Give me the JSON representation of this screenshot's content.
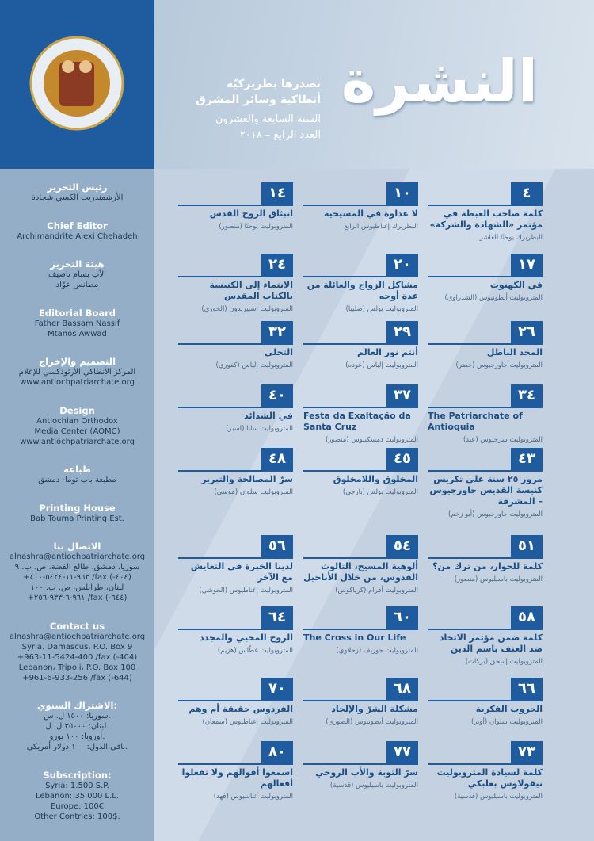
{
  "header": {
    "title": "النشرة",
    "publisher": [
      "تصدرها بطريركيّة",
      "أنطاكية وسائر المشرق"
    ],
    "year": "السنة السابعة والعشرون",
    "issue": "العدد الرابع – ٢٠١٨"
  },
  "sidebar": [
    {
      "heading": "رئيس التحرير",
      "lines": [
        "الأرشمندريت الكسي شحادة"
      ]
    },
    {
      "heading": "Chief Editor",
      "lines": [
        "Archimandrite Alexi Chehadeh"
      ]
    },
    {
      "heading": "هيئة التحرير",
      "lines": [
        "الأب بسام ناصيف",
        "مطانس عوّاد"
      ]
    },
    {
      "heading": "Editorial Board",
      "lines": [
        "Father Bassam Nassif",
        "Mtanos Awwad"
      ]
    },
    {
      "heading": "التصميم والإخراج",
      "lines": [
        "المركز الأنطاكي الأرثوذكسي للإعلام",
        "www.antiochpatriarchate.org"
      ]
    },
    {
      "heading": "Design",
      "lines": [
        "Antiochian Orthodox",
        "Media Center (AOMC)",
        "www.antiochpatriarchate.org"
      ]
    },
    {
      "heading": "طباعة",
      "lines": [
        "مطبعة باب توما- دمشق"
      ]
    },
    {
      "heading": "Printing House",
      "lines": [
        "Bab Touma Printing Est."
      ]
    },
    {
      "heading": "الاتصال بنا",
      "lines": [
        "alnashra@antiochpatriarchate.org",
        "سوريا، دمشق، طالع الفضة، ص. ب. ٩",
        "+٩٦٣-١١-٥٤٢٤-٤٠٠ /fax (-٤٠٤)",
        "لبنان، طرابلس، ص. ب. ١٠٠",
        "+٩٦١-٦-٩٣٣-٢٥٦ /fax (-٦٤٤)"
      ]
    },
    {
      "heading": "Contact us",
      "lines": [
        "alnashra@antiochpatriarchate.org",
        "Syria، Damascus، P.O. Box 9",
        "+963-11-5424-400 /fax (-404)",
        "Lebanon، Tripoli، P.O. Box 100",
        "+961-6-933-256 /fax (-644)"
      ]
    },
    {
      "heading": "الاشتراك السنوي:",
      "lines": [
        "سوريا: ١٥٠٠ ل. س.",
        "لبنان: ٣٥٠٠٠ ل. ل.",
        "أوروبا: ١٠٠ يورو.",
        "باقي الدول: ١٠٠ دولار أمريكي."
      ]
    },
    {
      "heading": "Subscription:",
      "lines": [
        "Syria: 1.500 S.P.",
        "Lebanon: 35.000 L.L.",
        "Europe: 100€",
        "Other Contries: 100$."
      ]
    }
  ],
  "toc": [
    [
      {
        "page": "٤",
        "title": "كلمة صاحب الغبطة في مؤتمر «الشهادة والشركة»",
        "author": "البطريرك يوحنّا العاشر"
      },
      {
        "page": "١٠",
        "title": "لا عداوة في المسيحية",
        "author": "البطريرك إغناطيوس الرابع"
      },
      {
        "page": "١٤",
        "title": "انبثاق الروح القدس",
        "author": "المتروبوليت يوحنّا (منصور)"
      }
    ],
    [
      {
        "page": "١٧",
        "title": "في الكهنوت",
        "author": "المتروبوليت أنطونيوس (الشدراوي)"
      },
      {
        "page": "٢٠",
        "title": "مشاكل الزواج والعائلة من عدة أوجه",
        "author": "المتروبوليت بولس (صليبا)"
      },
      {
        "page": "٢٤",
        "title": "الانتماء إلى الكنيسة بالكتاب المقدس",
        "author": "المتروبوليت اسبيريدون (الخوري)"
      }
    ],
    [
      {
        "page": "٢٦",
        "title": "المجد الباطل",
        "author": "المتروبوليت جاورجيوس (خضر)"
      },
      {
        "page": "٢٩",
        "title": "أنتم نور العالم",
        "author": "المتروبوليت إلياس (عوده)"
      },
      {
        "page": "٣٢",
        "title": "التجلي",
        "author": "المتروبوليت إلياس (كفوري)"
      }
    ],
    [
      {
        "page": "٣٤",
        "title": "The Patriarchate of Antioquia",
        "author": "المتروبوليت سرجيوس (عبد)"
      },
      {
        "page": "٣٧",
        "title": "Festa da Exaltação da Santa Cruz",
        "author": "المتروبوليت دمسكينوس (منصور)"
      },
      {
        "page": "٤٠",
        "title": "في الشدائد",
        "author": "المتروبوليت سابا (اسبر)"
      }
    ],
    [
      {
        "page": "٤٣",
        "title": "مرور ٢٥ سنة على تكريس كنيسة القديس جاورجيوس – المشرفة",
        "author": "المتروبوليت جاورجيوس (أبو زخم)"
      },
      {
        "page": "٤٥",
        "title": "المخلوق واللامخلوق",
        "author": "المتروبوليت بولس (بازجي)"
      },
      {
        "page": "٤٨",
        "title": "سرّ المصالحة والتبرير",
        "author": "المتروبوليت سلوان (موسي)"
      }
    ],
    [
      {
        "page": "٥١",
        "title": "كلمة للحوار، من ترك من؟",
        "author": "المتروبوليت باسيليوس (منصور)"
      },
      {
        "page": "٥٤",
        "title": "ألوهية المسيح، الثالوث القدوس، من خلال الأناجيل",
        "author": "المتروبوليت أفرام (كرياكوس)"
      },
      {
        "page": "٥٦",
        "title": "لدينا الخبرة في التعايش مع الآخر",
        "author": "المتروبوليت إغناطيوس (الحوشي)"
      }
    ],
    [
      {
        "page": "٥٨",
        "title": "كلمة ضمن مؤتمر الاتحاد ضد العنف باسم الدين",
        "author": "المتروبوليت إسحق (بركات)"
      },
      {
        "page": "٦٠",
        "title": "The Cross in Our Life",
        "author": "المتروبوليت جوزيف (زحلاوي)"
      },
      {
        "page": "٦٤",
        "title": "الروح المحيي والمجدد",
        "author": "المتروبوليت غطّاس (هزيم)"
      }
    ],
    [
      {
        "page": "٦٦",
        "title": "الحروب الفكرية",
        "author": "المتروبوليت سلوان (أونر)"
      },
      {
        "page": "٦٨",
        "title": "مشكلة الشرّ والإلحاد",
        "author": "المتروبوليت أنطونيوس (الصوري)"
      },
      {
        "page": "٧٠",
        "title": "الفردوس حقيقة أم وهم",
        "author": "المتروبوليت إغناطيوس (سمعان)"
      }
    ],
    [
      {
        "page": "٧٣",
        "title": "كلمة لسيادة المتروبوليت نيقولاوس بعلبكي",
        "author": "المتروبوليت باسيليوس (قدسية)"
      },
      {
        "page": "٧٧",
        "title": "سرّ التوبة والأب الروحي",
        "author": "المتروبوليت باسيليوس (قدسية)"
      },
      {
        "page": "٨٠",
        "title": "اسمعوا أقوالهم ولا تفعلوا أفعالهم",
        "author": "المتروبوليت أثناسيوس (فهد)"
      }
    ]
  ]
}
